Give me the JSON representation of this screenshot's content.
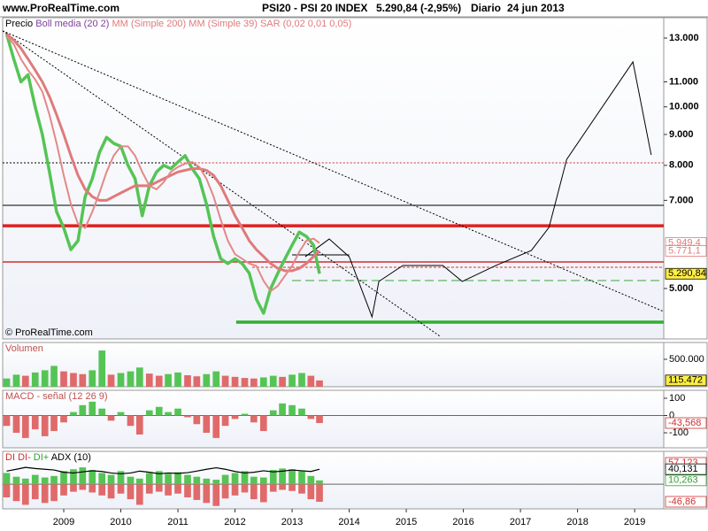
{
  "header": {
    "site": "www.ProRealTime.com",
    "instrument": "PSI20 - PSI 20 INDEX",
    "quote": "5.290,84 (-2,95%)",
    "period": "Diario",
    "date": "24 jun 2013"
  },
  "chart_data": [
    {
      "type": "line",
      "log_scale": true,
      "watermark": "© ProRealTime.com",
      "xlim": [
        2007.93,
        2019.51
      ],
      "ylim": [
        4125,
        14050
      ],
      "yticks": [
        {
          "value": 5000,
          "label": "5.000"
        },
        {
          "value": 7000,
          "label": "7.000"
        },
        {
          "value": 8000,
          "label": "8.000"
        },
        {
          "value": 9000,
          "label": "9.000"
        },
        {
          "value": 10000,
          "label": "10.000"
        },
        {
          "value": 11000,
          "label": "11.000"
        },
        {
          "value": 13000,
          "label": "13.000"
        }
      ],
      "x": [
        2008,
        2008.125,
        2008.25,
        2008.375,
        2008.5,
        2008.625,
        2008.75,
        2008.875,
        2009,
        2009.125,
        2009.25,
        2009.375,
        2009.5,
        2009.625,
        2009.75,
        2009.875,
        2010,
        2010.125,
        2010.25,
        2010.375,
        2010.5,
        2010.625,
        2010.75,
        2010.875,
        2011,
        2011.125,
        2011.25,
        2011.375,
        2011.5,
        2011.625,
        2011.75,
        2011.875,
        2012,
        2012.125,
        2012.25,
        2012.375,
        2012.5,
        2012.625,
        2012.75,
        2012.875,
        2013,
        2013.125,
        2013.25,
        2013.375,
        2013.48
      ],
      "series": [
        {
          "name": "Precio",
          "color": "#55c455",
          "legend_color": "#000000",
          "width": 3.5,
          "values": [
            13200,
            12000,
            11000,
            11300,
            10000,
            9000,
            7800,
            6700,
            6300,
            5800,
            6000,
            7100,
            7600,
            8400,
            8900,
            8700,
            8600,
            8000,
            7600,
            6600,
            7400,
            7800,
            8000,
            7900,
            8100,
            8300,
            7900,
            7600,
            6900,
            6100,
            5600,
            5500,
            5600,
            5500,
            5300,
            4800,
            4550,
            5000,
            5300,
            5600,
            5900,
            6200,
            6100,
            5900,
            5290.84
          ]
        },
        {
          "name": "MM (Simple 200)",
          "color": "#e07a7a",
          "legend_color": "#e07a7a",
          "width": 3,
          "values": [
            13200,
            12900,
            12500,
            12000,
            11500,
            11000,
            10400,
            9700,
            9000,
            8300,
            7700,
            7300,
            7100,
            7000,
            7000,
            7100,
            7200,
            7300,
            7400,
            7400,
            7400,
            7500,
            7600,
            7700,
            7800,
            7850,
            7900,
            7900,
            7850,
            7700,
            7400,
            7000,
            6600,
            6300,
            6000,
            5800,
            5650,
            5500,
            5400,
            5350,
            5350,
            5400,
            5500,
            5650,
            5771.1
          ]
        },
        {
          "name": "MM (Simple 39)",
          "color": "#e38888",
          "legend_color": "#e07a7a",
          "width": 2,
          "values": [
            13100,
            12700,
            12000,
            11500,
            11100,
            10600,
            9700,
            8700,
            7700,
            6900,
            6400,
            6300,
            6700,
            7200,
            7800,
            8300,
            8600,
            8600,
            8300,
            7800,
            7400,
            7300,
            7500,
            7800,
            7950,
            8050,
            8100,
            7950,
            7600,
            7100,
            6500,
            6000,
            5700,
            5600,
            5500,
            5450,
            5150,
            4950,
            5050,
            5250,
            5450,
            5750,
            6000,
            6050,
            5949.4
          ]
        }
      ],
      "indicators": [
        {
          "name": "Boll media (20 2)",
          "color": "#8040a0"
        },
        {
          "name": "SAR (0,02 0,01 0,05)",
          "color": "#e07a7a"
        }
      ],
      "hlines": [
        {
          "value": 8077,
          "color": "#000000",
          "width": 1,
          "dash": "2 2",
          "to": 2010.98
        },
        {
          "value": 8077,
          "color": "#d03030",
          "width": 1,
          "dash": "2 2",
          "from": 2010.98
        },
        {
          "value": 6868,
          "color": "#000000",
          "width": 1
        },
        {
          "value": 6353,
          "color": "#e02020",
          "width": 3.5
        },
        {
          "value": 5684,
          "color": "#000000",
          "width": 1,
          "from": 2013.0,
          "to": 2014.0
        },
        {
          "value": 5534,
          "color": "#d03030",
          "width": 1.5
        },
        {
          "value": 5423,
          "color": "#d03030",
          "width": 1,
          "dash": "3 2",
          "from": 2012.3
        },
        {
          "value": 5154,
          "color": "#40a040",
          "width": 1,
          "dash": "10 5",
          "from": 2013.0
        },
        {
          "value": 4398,
          "color": "#30b030",
          "width": 3.5,
          "from": 2012.02
        }
      ],
      "lines": [
        {
          "color": "#000000",
          "width": 1,
          "dash": "2 2",
          "points": [
            [
              2007.93,
              13360
            ],
            [
              2019.51,
              4580
            ]
          ]
        },
        {
          "color": "#000000",
          "width": 1,
          "dash": "2 2",
          "points": [
            [
              2007.93,
              13360
            ],
            [
              2015.59,
              4168
            ]
          ]
        },
        {
          "color": "#000000",
          "width": 1,
          "points": [
            [
              2013.23,
              5645
            ],
            [
              2013.65,
              6040
            ],
            [
              2014.0,
              5645
            ],
            [
              2014.4,
              4487
            ],
            [
              2014.52,
              5137
            ],
            [
              2014.94,
              5460
            ],
            [
              2015.64,
              5460
            ],
            [
              2015.98,
              5137
            ],
            [
              2016.57,
              5460
            ],
            [
              2017.19,
              5781
            ],
            [
              2017.5,
              6313
            ],
            [
              2017.81,
              8185
            ],
            [
              2018.97,
              11870
            ],
            [
              2019.29,
              8324
            ]
          ]
        }
      ],
      "markers": [
        {
          "value": 5949.4,
          "label": "5.949,4",
          "color": "#e07a7a",
          "bg": "#ffffff"
        },
        {
          "value": 5771.1,
          "label": "5.771,1",
          "color": "#e07a7a",
          "bg": "#ffffff"
        },
        {
          "value": 5290.84,
          "label": "5.290,84",
          "color": "#000000",
          "bg": "#ffee44"
        }
      ]
    },
    {
      "type": "bar",
      "xlim": [
        2007.93,
        2019.51
      ],
      "ylim": [
        0,
        806000
      ],
      "yticks": [
        {
          "value": 500000,
          "label": "500.000"
        }
      ],
      "x": [
        2008,
        2008.17,
        2008.33,
        2008.5,
        2008.67,
        2008.83,
        2009,
        2009.17,
        2009.33,
        2009.5,
        2009.67,
        2009.83,
        2010,
        2010.17,
        2010.33,
        2010.5,
        2010.67,
        2010.83,
        2011,
        2011.17,
        2011.33,
        2011.5,
        2011.67,
        2011.83,
        2012,
        2012.17,
        2012.33,
        2012.5,
        2012.67,
        2012.83,
        2013,
        2013.17,
        2013.33,
        2013.48
      ],
      "series": [
        {
          "name": "Volumen",
          "color": "#55c455",
          "negative_color": "#e06a6a",
          "legend_color": "#c05050",
          "values": [
            150000,
            220000,
            200000,
            260000,
            300000,
            380000,
            280000,
            250000,
            230000,
            300000,
            660000,
            220000,
            250000,
            280000,
            350000,
            240000,
            200000,
            230000,
            260000,
            210000,
            190000,
            230000,
            280000,
            200000,
            180000,
            160000,
            150000,
            170000,
            200000,
            180000,
            220000,
            250000,
            200000,
            115472
          ]
        }
      ],
      "markers": [
        {
          "value": 115472,
          "label": "115.472",
          "color": "#000000",
          "bg": "#ffee44"
        }
      ]
    },
    {
      "type": "bar",
      "xlim": [
        2007.93,
        2019.51
      ],
      "ylim": [
        -187,
        146
      ],
      "yticks": [
        100,
        0,
        -100
      ],
      "x": [
        2008,
        2008.17,
        2008.33,
        2008.5,
        2008.67,
        2008.83,
        2009,
        2009.17,
        2009.33,
        2009.5,
        2009.67,
        2009.83,
        2010,
        2010.17,
        2010.33,
        2010.5,
        2010.67,
        2010.83,
        2011,
        2011.17,
        2011.33,
        2011.5,
        2011.67,
        2011.83,
        2012,
        2012.17,
        2012.33,
        2012.5,
        2012.67,
        2012.83,
        2013,
        2013.17,
        2013.33,
        2013.48
      ],
      "series": [
        {
          "name": "MACD - señal (12 26 9)",
          "color": "#55c455",
          "negative_color": "#e06a6a",
          "legend_color": "#c05050",
          "values": [
            -60,
            -100,
            -130,
            -80,
            -120,
            -90,
            -40,
            20,
            60,
            80,
            40,
            -30,
            20,
            -60,
            -110,
            30,
            50,
            20,
            40,
            -10,
            -50,
            -100,
            -130,
            -60,
            -20,
            10,
            -40,
            -90,
            30,
            70,
            60,
            40,
            -20,
            -43.568
          ]
        }
      ],
      "markers": [
        {
          "value": -43.568,
          "label": "-43,568",
          "color": "#d03030",
          "bg": "#ffffff"
        }
      ]
    },
    {
      "type": "combo",
      "title": "DI",
      "title_color": "#d03030",
      "xlim": [
        2007.93,
        2019.51
      ],
      "ylim": [
        -65.8,
        87.8
      ],
      "xticks": [
        2009,
        2010,
        2011,
        2012,
        2013,
        2014,
        2015,
        2016,
        2017,
        2018,
        2019
      ],
      "x": [
        2008,
        2008.17,
        2008.33,
        2008.5,
        2008.67,
        2008.83,
        2009,
        2009.17,
        2009.33,
        2009.5,
        2009.67,
        2009.83,
        2010,
        2010.17,
        2010.33,
        2010.5,
        2010.67,
        2010.83,
        2011,
        2011.17,
        2011.33,
        2011.5,
        2011.67,
        2011.83,
        2012,
        2012.17,
        2012.33,
        2012.5,
        2012.67,
        2012.83,
        2013,
        2013.17,
        2013.33,
        2013.48
      ],
      "series": [
        {
          "name": "DI-",
          "kind": "bar",
          "color": "#e06a6a",
          "legend_color": "#d03030",
          "values": [
            -35,
            -45,
            -55,
            -40,
            -50,
            -45,
            -30,
            -20,
            -15,
            -22,
            -30,
            -38,
            -25,
            -40,
            -55,
            -25,
            -20,
            -30,
            -25,
            -35,
            -42,
            -50,
            -58,
            -38,
            -30,
            -22,
            -40,
            -48,
            -20,
            -15,
            -18,
            -25,
            -40,
            -46.86
          ]
        },
        {
          "name": "DI+",
          "kind": "bar",
          "color": "#55c455",
          "legend_color": "#30a030",
          "values": [
            30,
            20,
            15,
            25,
            18,
            22,
            35,
            40,
            45,
            38,
            30,
            25,
            35,
            20,
            15,
            30,
            35,
            28,
            32,
            25,
            20,
            15,
            12,
            25,
            30,
            35,
            20,
            18,
            38,
            42,
            40,
            35,
            22,
            10.263
          ]
        },
        {
          "name": "ADX (10)",
          "kind": "line",
          "color": "#000000",
          "legend_color": "#000000",
          "values": [
            35,
            40,
            45,
            42,
            40,
            38,
            32,
            30,
            33,
            36,
            34,
            30,
            28,
            30,
            35,
            32,
            28,
            30,
            29,
            31,
            35,
            40,
            44,
            40,
            34,
            30,
            32,
            36,
            33,
            35,
            38,
            36,
            34,
            40.131
          ]
        }
      ],
      "markers": [
        {
          "value": 57.123,
          "label": "57,123",
          "color": "#d03030",
          "bg": "#ffffff"
        },
        {
          "value": 40.131,
          "label": "40,131",
          "color": "#000000",
          "bg": "#ffffff"
        },
        {
          "value": 10.263,
          "label": "10,263",
          "color": "#30a030",
          "bg": "#ffffff"
        },
        {
          "value": -46.86,
          "label": "-46,86",
          "color": "#d03030",
          "bg": "#ffffff"
        }
      ]
    }
  ]
}
